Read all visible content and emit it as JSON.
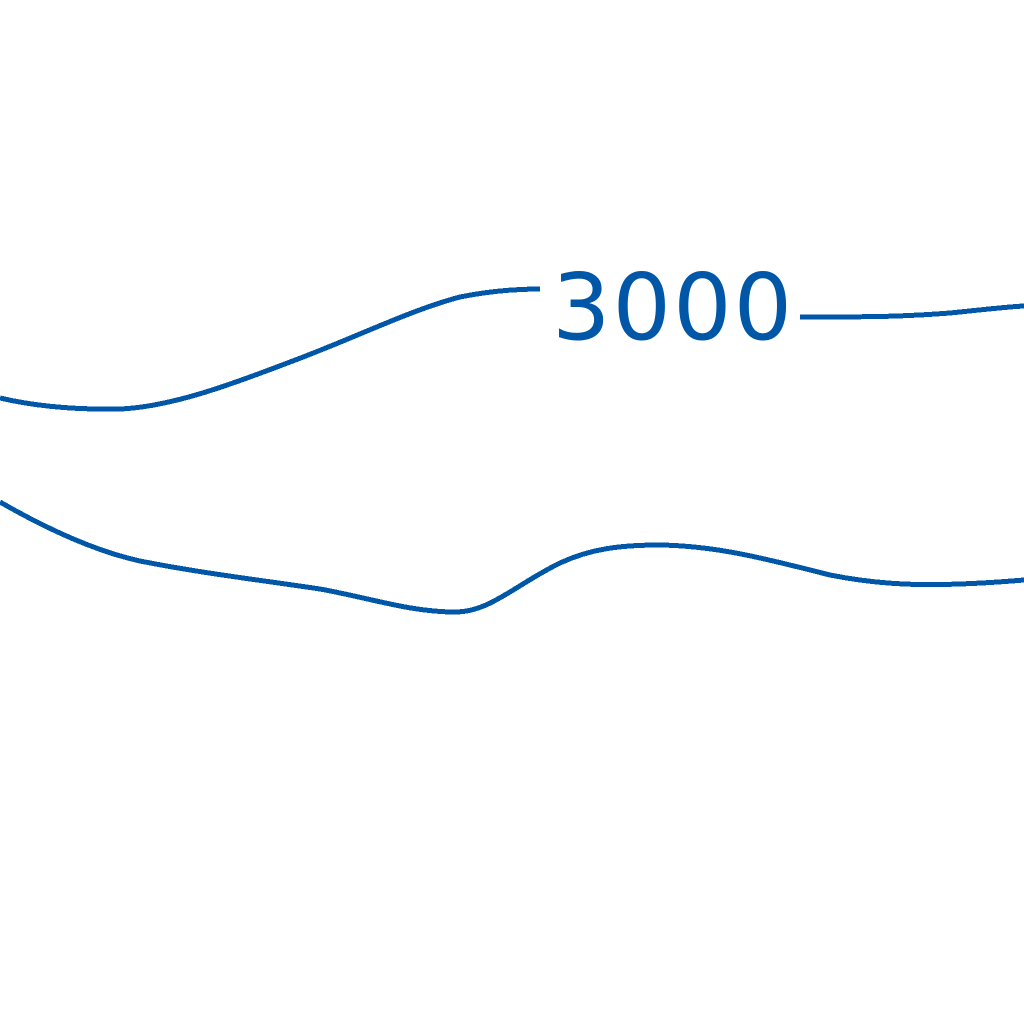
{
  "map": {
    "line_color": "#0057a8",
    "background": "#ffffff",
    "contours": [
      {
        "id": "contour-upper",
        "label": "3000"
      },
      {
        "id": "contour-lower",
        "label": ""
      }
    ]
  }
}
